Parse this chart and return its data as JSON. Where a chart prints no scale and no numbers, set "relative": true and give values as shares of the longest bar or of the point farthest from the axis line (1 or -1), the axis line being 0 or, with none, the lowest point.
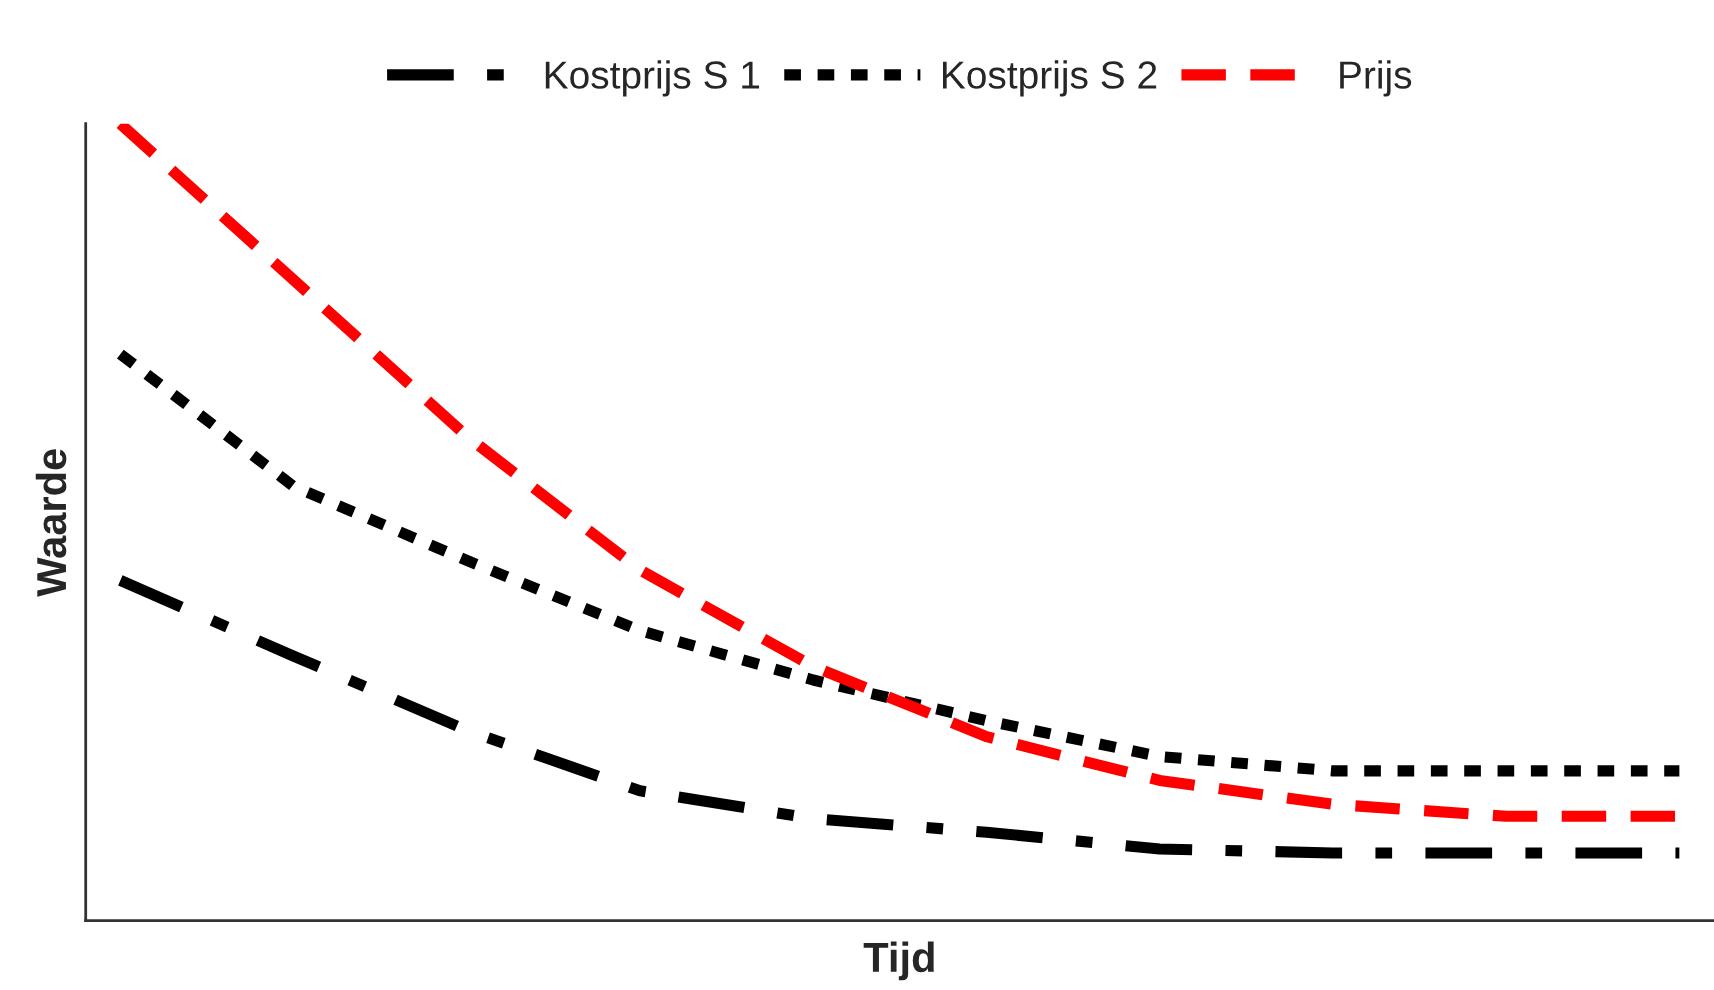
{
  "chart_data": {
    "type": "line",
    "xlabel": "Tijd",
    "ylabel": "Waarde",
    "relative": true,
    "legend": "top",
    "grid": false,
    "marker": "none",
    "categories": [
      null,
      null,
      null,
      null,
      null,
      null,
      null,
      null,
      null,
      null
    ],
    "series": [
      {
        "name": "Kostprijs S 1",
        "color": "#000000",
        "line_style": "dashed",
        "values": [
          0.427,
          0.332,
          0.239,
          0.163,
          0.128,
          0.111,
          0.09,
          0.085,
          0.085,
          0.085
        ]
      },
      {
        "name": "Kostprijs S 2",
        "color": "#000000",
        "line_style": "dotted",
        "values": [
          0.711,
          0.545,
          0.452,
          0.364,
          0.302,
          0.251,
          0.206,
          0.188,
          0.188,
          0.188
        ]
      },
      {
        "name": "Prijs",
        "color": "#ff0000",
        "line_style": "dashed",
        "values": [
          1.0,
          0.804,
          0.608,
          0.44,
          0.319,
          0.231,
          0.176,
          0.146,
          0.131,
          0.131
        ]
      }
    ]
  }
}
